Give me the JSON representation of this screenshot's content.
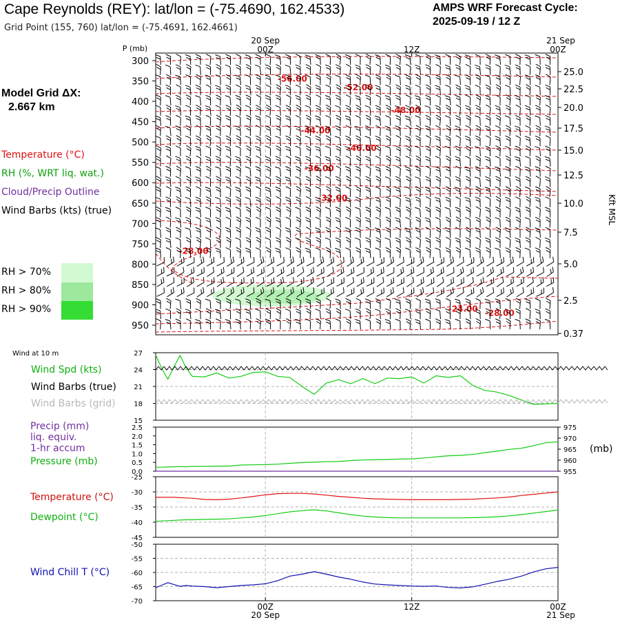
{
  "header": {
    "title": "Cape Reynolds (REY):  lat/lon = (-75.4690, 162.4533)",
    "subtitle": "Grid Point (155, 760) lat/lon = (-75.4691, 162.4661)",
    "cycle_line1": "AMPS WRF Forecast Cycle:",
    "cycle_line2": "2025-09-19 / 12  Z",
    "grid_label_line1": "Model Grid ΔX:",
    "grid_label_line2": "2.667 km"
  },
  "legend": {
    "temperature": "Temperature (°C)",
    "rh": "RH (%, WRT liq. wat.)",
    "cloud": "Cloud/Precip Outline",
    "wind": "Wind Barbs (kts) (true)",
    "rh_levels": [
      {
        "label": "RH > 70%",
        "color": "#d2f9d2"
      },
      {
        "label": "RH > 80%",
        "color": "#9ce89c"
      },
      {
        "label": "RH > 90%",
        "color": "#34dc34"
      }
    ]
  },
  "colors": {
    "temperature": "#e01010",
    "rh": "#10a010",
    "cloud": "#7030a0",
    "green_line": "#10cc10",
    "blue_line": "#1010b0",
    "grid": "#b0b0b0"
  },
  "chart_data": [
    {
      "type": "time-height cross section",
      "name": "upper-air",
      "yaxis_left_label": "P (mb)",
      "yaxis_right_label": "Kft MSL",
      "pressure_ticks": [
        "300",
        "350",
        "400",
        "450",
        "500",
        "550",
        "600",
        "650",
        "700",
        "750",
        "800",
        "850",
        "900",
        "950"
      ],
      "height_ticks": [
        "25.0",
        "22.5",
        "20.0",
        "17.5",
        "15.0",
        "12.5",
        "10.0",
        "7.5",
        "5.0",
        "2.5",
        "0.37"
      ],
      "time_ticks_top": [
        {
          "hour": 12,
          "label": "00Z",
          "date": "20 Sep"
        },
        {
          "hour": 24,
          "label": "12Z",
          "date": ""
        },
        {
          "hour": 36,
          "label": "00Z",
          "date": "21 Sep"
        }
      ],
      "xlim_hours": [
        3,
        36
      ],
      "temperature_labels": [
        {
          "text": "-56.00",
          "hour": 13.0,
          "p": 345
        },
        {
          "text": "-52.00",
          "hour": 18.4,
          "p": 366
        },
        {
          "text": "-48.00",
          "hour": 22.3,
          "p": 422
        },
        {
          "text": "-44.00",
          "hour": 14.9,
          "p": 472
        },
        {
          "text": "-40.00",
          "hour": 18.7,
          "p": 515
        },
        {
          "text": "-36.00",
          "hour": 15.2,
          "p": 565
        },
        {
          "text": "-32.00",
          "hour": 16.3,
          "p": 638
        },
        {
          "text": "-28.00",
          "hour": 4.9,
          "p": 768
        },
        {
          "text": "-24.00",
          "hour": 27.0,
          "p": 910
        },
        {
          "text": "-28.00",
          "hour": 30.0,
          "p": 920
        }
      ],
      "rh_shading_note": "RH > 70% band near 860-890 mb, hours 7-18",
      "wind_barbs_kts": "northerly-to-easterly 10-25 kt throughout column"
    },
    {
      "type": "line",
      "name": "wind-at-10m",
      "panel_title": "Wind at 10 m",
      "series_label": "Wind Spd (kts)",
      "barb_true_label": "Wind Barbs (true)",
      "barb_grid_label": "Wind Barbs (grid)",
      "ylim": [
        15,
        27
      ],
      "yticks": [
        "27",
        "24",
        "21",
        "18",
        "15"
      ],
      "x_hours": [
        3,
        3.5,
        4,
        4.5,
        5,
        5.5,
        6,
        7,
        8,
        9,
        10,
        11,
        12,
        13,
        14,
        15,
        16,
        17,
        18,
        19,
        20,
        21,
        22,
        23,
        24,
        25,
        26,
        27,
        28,
        29,
        30,
        31,
        32,
        33,
        34,
        35,
        36
      ],
      "values": [
        26.6,
        24.2,
        22.3,
        24.5,
        26.5,
        24.3,
        22.8,
        22.7,
        23.4,
        22.5,
        22.8,
        23.5,
        23.6,
        22.8,
        22.6,
        21.0,
        19.6,
        21.6,
        22.2,
        21.5,
        22.4,
        21.5,
        22.5,
        22.4,
        22.7,
        21.6,
        22.9,
        22.6,
        22.9,
        21.2,
        20.3,
        20.0,
        19.4,
        18.6,
        17.8,
        17.9,
        18.0
      ]
    },
    {
      "type": "line",
      "name": "precip-pressure",
      "precip_label_1": "Precip (mm)",
      "precip_label_2": "liq. equiv.",
      "precip_label_3": "1-hr accum",
      "pressure_label": "Pressure (mb)",
      "right_axis_unit": "(mb)",
      "left_ylim": [
        0.0,
        2.5
      ],
      "left_yticks": [
        "2.5",
        "2.0",
        "1.5",
        "1.0",
        "0.5",
        "0.0"
      ],
      "right_ylim": [
        955,
        975
      ],
      "right_yticks": [
        "975",
        "970",
        "965",
        "960",
        "955"
      ],
      "precip_values": [
        0,
        0,
        0,
        0,
        0,
        0,
        0,
        0,
        0,
        0,
        0,
        0,
        0,
        0,
        0,
        0,
        0,
        0,
        0,
        0,
        0,
        0,
        0,
        0,
        0,
        0,
        0,
        0,
        0,
        0,
        0,
        0,
        0,
        0,
        0,
        0,
        0
      ],
      "pressure_values": [
        956.8,
        956.8,
        956.9,
        957.0,
        957.1,
        957.0,
        957.2,
        957.2,
        957.3,
        957.3,
        957.8,
        957.9,
        958.0,
        958.2,
        958.6,
        958.9,
        959.1,
        959.3,
        959.4,
        959.8,
        960.1,
        960.2,
        960.3,
        960.5,
        960.6,
        961.0,
        961.5,
        962.0,
        962.2,
        962.6,
        963.4,
        964.1,
        964.9,
        965.4,
        966.6,
        967.9,
        968.3
      ]
    },
    {
      "type": "line",
      "name": "temperature-dewpoint",
      "temperature_label": "Temperature (°C)",
      "dewpoint_label": "Dewpoint (°C)",
      "ylim": [
        -45,
        -25
      ],
      "yticks": [
        "-25",
        "-30",
        "-35",
        "-40",
        "-45"
      ],
      "temperature_values": [
        -31.8,
        -31.8,
        -31.8,
        -31.8,
        -31.9,
        -32.0,
        -32.1,
        -32.5,
        -32.6,
        -32.4,
        -32.0,
        -31.5,
        -31.0,
        -30.6,
        -30.5,
        -30.5,
        -30.7,
        -31.1,
        -31.5,
        -31.8,
        -32.1,
        -32.3,
        -32.4,
        -32.5,
        -32.6,
        -32.6,
        -32.6,
        -32.6,
        -32.5,
        -32.4,
        -32.2,
        -32.0,
        -31.7,
        -31.2,
        -30.8,
        -30.4,
        -30.0
      ],
      "dewpoint_values": [
        -39.7,
        -39.6,
        -39.5,
        -39.4,
        -39.3,
        -39.2,
        -39.2,
        -39.1,
        -39.0,
        -38.9,
        -38.6,
        -38.3,
        -37.8,
        -37.2,
        -36.6,
        -36.2,
        -35.9,
        -36.3,
        -36.9,
        -37.5,
        -38.0,
        -38.3,
        -38.5,
        -38.6,
        -38.6,
        -38.6,
        -38.6,
        -38.6,
        -38.6,
        -38.5,
        -38.4,
        -38.2,
        -37.9,
        -37.5,
        -37.0,
        -36.5,
        -36.0
      ]
    },
    {
      "type": "line",
      "name": "wind-chill",
      "series_label": "Wind Chill T (°C)",
      "ylim": [
        -70,
        -50
      ],
      "yticks": [
        "-50",
        "-55",
        "-60",
        "-65",
        "-70"
      ],
      "x_tick_labels": [
        {
          "hour": 12,
          "label": "00Z",
          "date": "20 Sep"
        },
        {
          "hour": 24,
          "label": "12Z",
          "date": ""
        },
        {
          "hour": 36,
          "label": "00Z",
          "date": "21 Sep"
        }
      ],
      "values": [
        -65.4,
        -64.5,
        -63.6,
        -64.3,
        -64.9,
        -64.6,
        -64.8,
        -65.0,
        -65.4,
        -65.0,
        -64.6,
        -64.4,
        -64.0,
        -62.9,
        -61.3,
        -60.6,
        -59.7,
        -60.6,
        -61.6,
        -62.4,
        -63.4,
        -64.1,
        -64.4,
        -64.6,
        -64.8,
        -64.9,
        -64.8,
        -65.3,
        -65.5,
        -65.1,
        -64.2,
        -63.2,
        -62.4,
        -61.3,
        -59.8,
        -58.7,
        -58.2
      ]
    }
  ]
}
